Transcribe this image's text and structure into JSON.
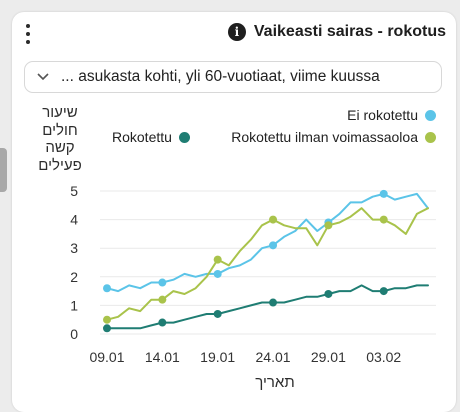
{
  "header": {
    "title": "Vaikeasti sairas - rokotus",
    "info_icon": "info-icon",
    "menu_icon": "kebab-menu-icon"
  },
  "filter": {
    "selected": "... asukasta kohti, yli 60-vuotiaat, viime kuussa",
    "chevron_icon": "chevron-down-icon"
  },
  "chart_data": {
    "type": "line",
    "title": "",
    "ylabel_lines": [
      "שיעור",
      "חולים",
      "קשה",
      "פעילים"
    ],
    "xlabel": "תאריך",
    "ylim": [
      0,
      5.4
    ],
    "yticks": [
      "0",
      "1",
      "2",
      "3",
      "4",
      "5"
    ],
    "xticks": [
      "09.01",
      "14.01",
      "19.01",
      "24.01",
      "29.01",
      "03.02"
    ],
    "grid": true,
    "legend": [
      {
        "name": "Ei rokotettu",
        "color": "#5bc4e8"
      },
      {
        "name": "Rokotettu",
        "color": "#1f7d73"
      },
      {
        "name": "Rokotettu ilman voimassaoloa",
        "color": "#a9c34b"
      }
    ],
    "x": [
      "09.01",
      "10.01",
      "11.01",
      "12.01",
      "13.01",
      "14.01",
      "15.01",
      "16.01",
      "17.01",
      "18.01",
      "19.01",
      "20.01",
      "21.01",
      "22.01",
      "23.01",
      "24.01",
      "25.01",
      "26.01",
      "27.01",
      "28.01",
      "29.01",
      "30.01",
      "31.01",
      "01.02",
      "02.02",
      "03.02",
      "04.02",
      "05.02",
      "06.02",
      "07.02"
    ],
    "series": [
      {
        "name": "Ei rokotettu",
        "color": "#5bc4e8",
        "values": [
          1.6,
          1.5,
          1.7,
          1.6,
          1.8,
          1.8,
          1.9,
          2.1,
          2.0,
          2.1,
          2.1,
          2.3,
          2.4,
          2.6,
          3.0,
          3.1,
          3.4,
          3.6,
          4.0,
          3.6,
          3.9,
          4.2,
          4.6,
          4.6,
          4.8,
          4.9,
          4.7,
          4.8,
          4.9,
          4.4
        ],
        "markers": [
          0,
          5,
          10,
          15,
          20,
          25
        ]
      },
      {
        "name": "Rokotettu",
        "color": "#1f7d73",
        "values": [
          0.2,
          0.2,
          0.2,
          0.2,
          0.3,
          0.4,
          0.4,
          0.5,
          0.6,
          0.7,
          0.7,
          0.8,
          0.9,
          1.0,
          1.1,
          1.1,
          1.1,
          1.2,
          1.3,
          1.3,
          1.4,
          1.5,
          1.5,
          1.7,
          1.5,
          1.5,
          1.6,
          1.6,
          1.7,
          1.7
        ],
        "markers": [
          0,
          5,
          10,
          15,
          20,
          25
        ]
      },
      {
        "name": "Rokotettu ilman voimassaoloa",
        "color": "#a9c34b",
        "values": [
          0.5,
          0.6,
          0.9,
          0.8,
          1.2,
          1.2,
          1.5,
          1.4,
          1.6,
          2.0,
          2.6,
          2.4,
          2.9,
          3.3,
          3.8,
          4.0,
          3.8,
          3.7,
          3.7,
          3.1,
          3.8,
          3.9,
          4.1,
          4.4,
          4.0,
          4.0,
          3.8,
          3.5,
          4.2,
          4.4
        ],
        "markers": [
          0,
          5,
          10,
          15,
          20,
          25
        ]
      }
    ]
  }
}
